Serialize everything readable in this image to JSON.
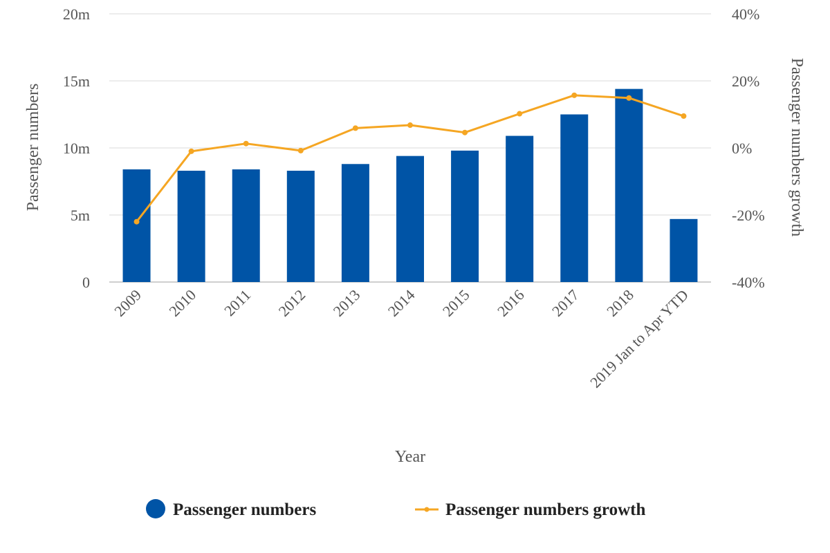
{
  "chart_data": {
    "type": "bar",
    "title": "",
    "xlabel": "Year",
    "ylabel": "Passenger numbers",
    "y2label": "Passenger numbers growth",
    "categories": [
      "2009",
      "2010",
      "2011",
      "2012",
      "2013",
      "2014",
      "2015",
      "2016",
      "2017",
      "2018",
      "2019 Jan to Apr YTD"
    ],
    "series": [
      {
        "name": "Passenger numbers",
        "type": "bar",
        "axis": "left",
        "color": "#0054a6",
        "values": [
          8.4,
          8.3,
          8.4,
          8.3,
          8.8,
          9.4,
          9.8,
          10.9,
          12.5,
          14.4,
          4.7
        ]
      },
      {
        "name": "Passenger numbers growth",
        "type": "line",
        "axis": "right",
        "color": "#f5a623",
        "values": [
          -22,
          -1,
          1.3,
          -0.8,
          5.9,
          6.8,
          4.6,
          10.2,
          15.7,
          14.9,
          9.5
        ]
      }
    ],
    "ylim": [
      0,
      20
    ],
    "y2lim": [
      -40,
      40
    ],
    "yticks": [
      {
        "value": 0,
        "label": "0"
      },
      {
        "value": 5,
        "label": "5m"
      },
      {
        "value": 10,
        "label": "10m"
      },
      {
        "value": 15,
        "label": "15m"
      },
      {
        "value": 20,
        "label": "20m"
      }
    ],
    "y2ticks": [
      {
        "value": -40,
        "label": "-40%"
      },
      {
        "value": -20,
        "label": "-20%"
      },
      {
        "value": 0,
        "label": "0%"
      },
      {
        "value": 20,
        "label": "20%"
      },
      {
        "value": 40,
        "label": "40%"
      }
    ],
    "grid": true,
    "legend_position": "bottom"
  }
}
